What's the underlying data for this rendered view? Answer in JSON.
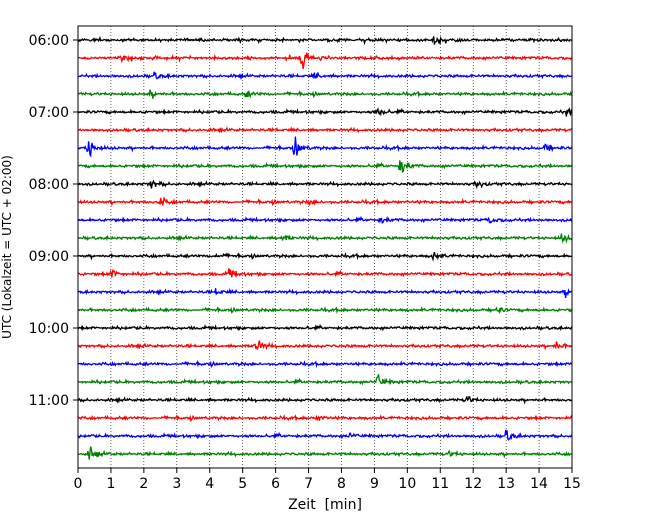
{
  "chart_data": {
    "type": "line",
    "title": "",
    "xlabel": "Zeit  [min]",
    "ylabel": "UTC (Lokalzeit = UTC + 02:00)",
    "xlim": [
      0,
      15
    ],
    "x_ticks": [
      "0",
      "1",
      "2",
      "3",
      "4",
      "5",
      "6",
      "7",
      "8",
      "9",
      "10",
      "11",
      "12",
      "13",
      "14",
      "15"
    ],
    "y_ticks": [
      {
        "label": "06:00",
        "trace_index": 0
      },
      {
        "label": "07:00",
        "trace_index": 4
      },
      {
        "label": "08:00",
        "trace_index": 8
      },
      {
        "label": "09:00",
        "trace_index": 12
      },
      {
        "label": "10:00",
        "trace_index": 16
      },
      {
        "label": "11:00",
        "trace_index": 20
      }
    ],
    "trace_interval_min": 15,
    "trace_count": 24,
    "color_cycle": [
      "#000000",
      "#ff0000",
      "#0000ff",
      "#008000"
    ],
    "vertical_grid": "dotted",
    "events": [
      {
        "trace": 0,
        "events": [
          [
            10.8,
            1.0
          ]
        ]
      },
      {
        "trace": 1,
        "events": [
          [
            6.8,
            1.3
          ],
          [
            1.3,
            0.5
          ]
        ]
      },
      {
        "trace": 2,
        "events": [
          [
            2.3,
            0.5
          ],
          [
            7.2,
            0.4
          ]
        ]
      },
      {
        "trace": 3,
        "events": [
          [
            2.2,
            0.5
          ],
          [
            5.1,
            0.45
          ]
        ]
      },
      {
        "trace": 4,
        "events": [
          [
            9.1,
            0.6
          ],
          [
            14.8,
            0.5
          ]
        ]
      },
      {
        "trace": 5,
        "events": []
      },
      {
        "trace": 6,
        "events": [
          [
            0.3,
            1.5
          ],
          [
            6.6,
            1.2
          ],
          [
            14.2,
            0.5
          ]
        ]
      },
      {
        "trace": 7,
        "events": [
          [
            9.8,
            1.2
          ]
        ]
      },
      {
        "trace": 8,
        "events": [
          [
            2.2,
            0.7
          ],
          [
            12.1,
            0.4
          ]
        ]
      },
      {
        "trace": 9,
        "events": [
          [
            2.5,
            0.6
          ],
          [
            7.0,
            0.35
          ]
        ]
      },
      {
        "trace": 10,
        "events": [
          [
            9.2,
            0.4
          ],
          [
            12.5,
            0.4
          ]
        ]
      },
      {
        "trace": 11,
        "events": [
          [
            6.2,
            0.5
          ],
          [
            14.7,
            0.6
          ]
        ]
      },
      {
        "trace": 12,
        "events": [
          [
            4.2,
            0.5
          ],
          [
            10.8,
            0.5
          ]
        ]
      },
      {
        "trace": 13,
        "events": [
          [
            1.0,
            0.7
          ],
          [
            4.6,
            0.6
          ]
        ]
      },
      {
        "trace": 14,
        "events": [
          [
            4.2,
            0.4
          ],
          [
            14.8,
            0.5
          ]
        ]
      },
      {
        "trace": 15,
        "events": [
          [
            12.7,
            0.4
          ]
        ]
      },
      {
        "trace": 16,
        "events": []
      },
      {
        "trace": 17,
        "events": [
          [
            5.4,
            0.9
          ],
          [
            14.5,
            0.6
          ]
        ]
      },
      {
        "trace": 18,
        "events": []
      },
      {
        "trace": 19,
        "events": [
          [
            9.1,
            0.8
          ]
        ]
      },
      {
        "trace": 20,
        "events": [
          [
            11.8,
            0.5
          ]
        ]
      },
      {
        "trace": 21,
        "events": [
          [
            7.3,
            0.35
          ]
        ]
      },
      {
        "trace": 22,
        "events": [
          [
            13.0,
            0.8
          ],
          [
            8.2,
            0.35
          ]
        ]
      },
      {
        "trace": 23,
        "events": [
          [
            0.35,
            0.8
          ],
          [
            11.3,
            0.35
          ]
        ]
      }
    ]
  }
}
